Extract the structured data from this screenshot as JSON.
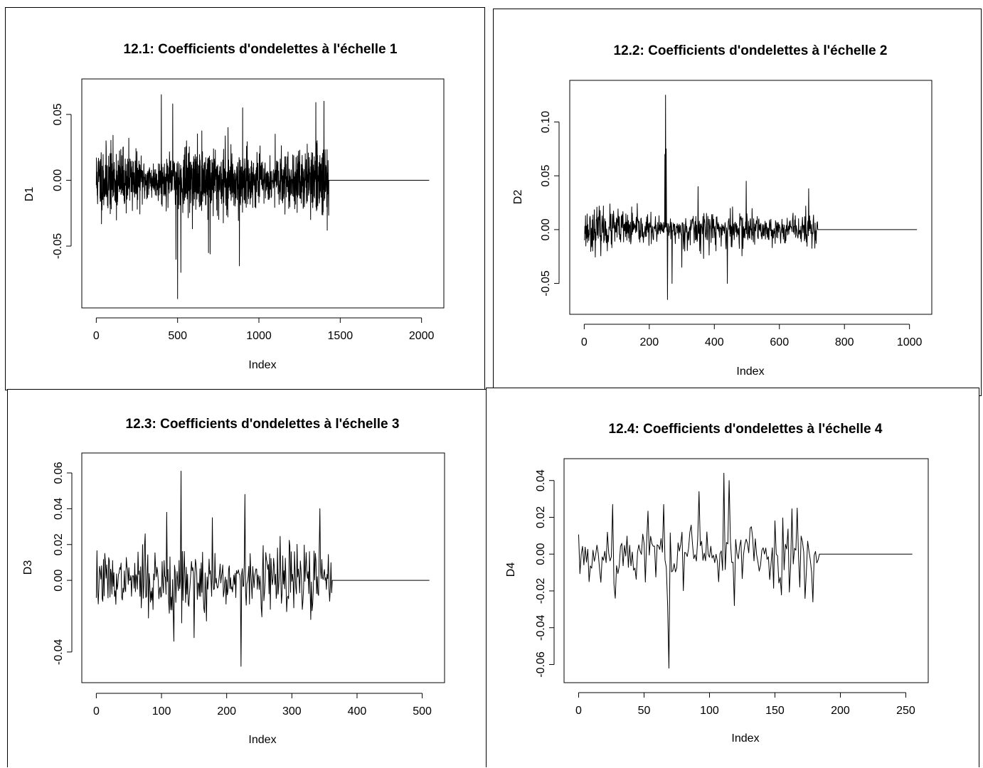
{
  "chart_data": [
    {
      "type": "line",
      "title": "12.1: Coefficients d'ondelettes à l'échelle 1",
      "xlabel": "Index",
      "ylabel": "D1",
      "xlim": [
        0,
        2048
      ],
      "ylim": [
        -0.09,
        0.07
      ],
      "xticks": [
        "0",
        "500",
        "1000",
        "1500",
        "2000"
      ],
      "yticks": [
        "-0.05",
        "0.00",
        "0.05"
      ],
      "xtick_values": [
        0,
        500,
        1000,
        1500,
        2000
      ],
      "ytick_values": [
        -0.05,
        0.0,
        0.05
      ],
      "data_end_index": 1430,
      "series_length": 2048,
      "seed": 11,
      "noise_sd": 0.011,
      "spikes": [
        {
          "x": 400,
          "y": 0.065
        },
        {
          "x": 500,
          "y": -0.09
        },
        {
          "x": 520,
          "y": -0.07
        },
        {
          "x": 490,
          "y": -0.06
        },
        {
          "x": 470,
          "y": 0.058
        },
        {
          "x": 700,
          "y": -0.056
        },
        {
          "x": 690,
          "y": -0.055
        },
        {
          "x": 880,
          "y": -0.065
        },
        {
          "x": 900,
          "y": 0.055
        },
        {
          "x": 1400,
          "y": 0.06
        },
        {
          "x": 1420,
          "y": -0.038
        },
        {
          "x": 200,
          "y": 0.032
        },
        {
          "x": 810,
          "y": 0.04
        },
        {
          "x": 1100,
          "y": 0.035
        }
      ]
    },
    {
      "type": "line",
      "title": "12.2: Coefficients d'ondelettes à l'échelle 2",
      "xlabel": "Index",
      "ylabel": "D2",
      "xlim": [
        0,
        1024
      ],
      "ylim": [
        -0.07,
        0.13
      ],
      "xticks": [
        "0",
        "200",
        "400",
        "600",
        "800",
        "1000"
      ],
      "yticks": [
        "-0.05",
        "0.00",
        "0.05",
        "0.10"
      ],
      "xtick_values": [
        0,
        200,
        400,
        600,
        800,
        1000
      ],
      "ytick_values": [
        -0.05,
        0.0,
        0.05,
        0.1
      ],
      "data_end_index": 718,
      "series_length": 1024,
      "seed": 23,
      "noise_sd": 0.008,
      "spikes": [
        {
          "x": 250,
          "y": 0.125
        },
        {
          "x": 248,
          "y": 0.07
        },
        {
          "x": 252,
          "y": 0.075
        },
        {
          "x": 256,
          "y": -0.065
        },
        {
          "x": 270,
          "y": -0.05
        },
        {
          "x": 440,
          "y": -0.05
        },
        {
          "x": 498,
          "y": 0.045
        },
        {
          "x": 350,
          "y": 0.04
        },
        {
          "x": 690,
          "y": 0.038
        },
        {
          "x": 300,
          "y": -0.035
        }
      ]
    },
    {
      "type": "line",
      "title": "12.3: Coefficients d'ondelettes à l'échelle 3",
      "xlabel": "Index",
      "ylabel": "D3",
      "xlim": [
        0,
        512
      ],
      "ylim": [
        -0.052,
        0.066
      ],
      "xticks": [
        "0",
        "100",
        "200",
        "300",
        "400",
        "500"
      ],
      "yticks": [
        "-0.04",
        "0.00",
        "0.02",
        "0.04",
        "0.06"
      ],
      "xtick_values": [
        0,
        100,
        200,
        300,
        400,
        500
      ],
      "ytick_values": [
        -0.04,
        0.0,
        0.02,
        0.04,
        0.06
      ],
      "data_end_index": 362,
      "series_length": 512,
      "seed": 37,
      "noise_sd": 0.009,
      "spikes": [
        {
          "x": 130,
          "y": 0.061
        },
        {
          "x": 222,
          "y": -0.048
        },
        {
          "x": 228,
          "y": 0.048
        },
        {
          "x": 178,
          "y": -0.04
        },
        {
          "x": 343,
          "y": 0.04
        },
        {
          "x": 108,
          "y": 0.038
        },
        {
          "x": 178,
          "y": 0.035
        },
        {
          "x": 119,
          "y": -0.034
        },
        {
          "x": 150,
          "y": -0.032
        },
        {
          "x": 75,
          "y": 0.026
        }
      ]
    },
    {
      "type": "line",
      "title": "12.4: Coefficients d'ondelettes à l'échelle 4",
      "xlabel": "Index",
      "ylabel": "D4",
      "xlim": [
        0,
        256
      ],
      "ylim": [
        -0.065,
        0.047
      ],
      "xticks": [
        "0",
        "50",
        "100",
        "150",
        "200",
        "250"
      ],
      "yticks": [
        "-0.06",
        "-0.04",
        "-0.02",
        "0.00",
        "0.02",
        "0.04"
      ],
      "xtick_values": [
        0,
        50,
        100,
        150,
        200,
        250
      ],
      "ytick_values": [
        -0.06,
        -0.04,
        -0.02,
        0.0,
        0.02,
        0.04
      ],
      "data_end_index": 184,
      "series_length": 256,
      "seed": 53,
      "noise_sd": 0.009,
      "spikes": [
        {
          "x": 69,
          "y": -0.062
        },
        {
          "x": 111,
          "y": 0.044
        },
        {
          "x": 115,
          "y": 0.04
        },
        {
          "x": 92,
          "y": 0.034
        },
        {
          "x": 26,
          "y": 0.027
        },
        {
          "x": 65,
          "y": 0.027
        },
        {
          "x": 167,
          "y": 0.025
        },
        {
          "x": 179,
          "y": -0.026
        },
        {
          "x": 28,
          "y": -0.024
        },
        {
          "x": 119,
          "y": -0.028
        },
        {
          "x": 8,
          "y": -0.015
        }
      ]
    }
  ]
}
